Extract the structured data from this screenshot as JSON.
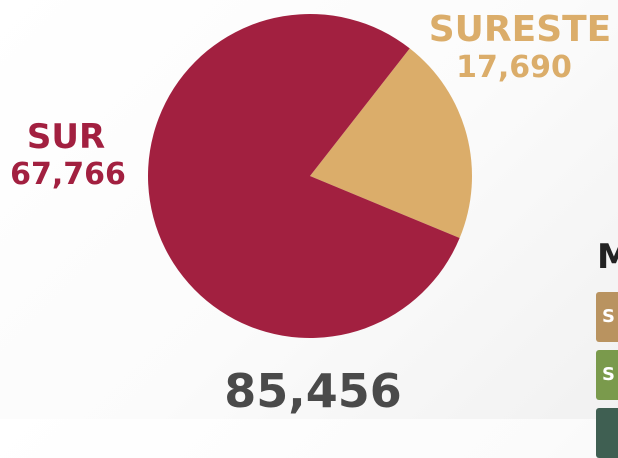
{
  "chart_data": {
    "type": "pie",
    "categories": [
      "SUR",
      "SURESTE"
    ],
    "values": [
      67766,
      17690
    ],
    "labels": [
      "67,766",
      "17,690"
    ],
    "total": "85,456",
    "colors": [
      "#a22040",
      "#dbad6a"
    ]
  },
  "legend": {
    "title": "M",
    "items": [
      {
        "text": "S",
        "color": "#b99360"
      },
      {
        "text": "S",
        "color": "#7a9a4c"
      },
      {
        "text": "",
        "color": "#3f5f52"
      }
    ]
  },
  "colors": {
    "sur": "#a22040",
    "sureste": "#dbad6a",
    "total": "#4a4a4a"
  }
}
